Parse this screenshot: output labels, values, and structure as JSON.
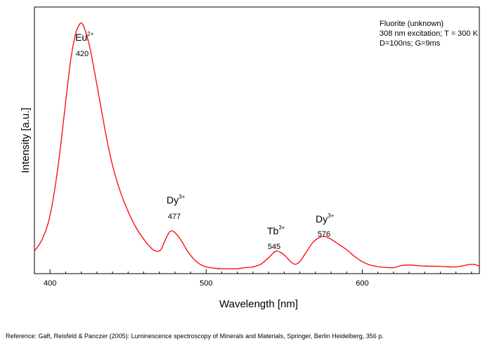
{
  "chart_data": {
    "type": "line",
    "title": "",
    "xlabel": "Wavelength [nm]",
    "ylabel": "Intensity [a.u.]",
    "xlim": [
      390,
      675
    ],
    "ylim": [
      0,
      100
    ],
    "x_ticks": [
      400,
      500,
      600
    ],
    "y_ticks": [],
    "grid": false,
    "series": [
      {
        "color": "#ff0000",
        "x": [
          390,
          395,
          400,
          405,
          410,
          413,
          416,
          418,
          420,
          422,
          425,
          428,
          432,
          436,
          440,
          445,
          450,
          455,
          460,
          465,
          468,
          471,
          474,
          477,
          480,
          484,
          488,
          492,
          496,
          500,
          505,
          510,
          515,
          520,
          525,
          530,
          535,
          540,
          545,
          550,
          554,
          557,
          560,
          564,
          568,
          572,
          576,
          580,
          585,
          590,
          595,
          600,
          605,
          610,
          615,
          620,
          625,
          630,
          640,
          650,
          660,
          670,
          675
        ],
        "y": [
          7.5,
          12,
          21,
          39,
          64,
          79,
          89,
          92.5,
          94,
          92,
          86,
          77,
          64,
          51,
          40,
          30,
          22.5,
          16.5,
          12,
          8.5,
          7.5,
          8,
          12,
          15,
          14.5,
          11.5,
          7.5,
          4.5,
          2.5,
          1.5,
          1,
          0.8,
          0.8,
          0.8,
          1.2,
          1.5,
          2.5,
          5,
          7.5,
          6,
          3.5,
          2.5,
          3.5,
          7,
          10.5,
          12.5,
          13,
          12,
          10,
          8,
          5.5,
          3.5,
          2.2,
          1.6,
          1.3,
          1.2,
          2,
          2.2,
          1.8,
          1.7,
          1.5,
          2.5,
          1.8
        ]
      }
    ],
    "annotations": [
      {
        "ion": "Eu",
        "charge": "2+",
        "value": "420"
      },
      {
        "ion": "Dy",
        "charge": "3+",
        "value": "477"
      },
      {
        "ion": "Tb",
        "charge": "3+",
        "value": "545"
      },
      {
        "ion": "Dy",
        "charge": "3+",
        "value": "576"
      }
    ]
  },
  "info_box": {
    "line1": "Fluorite (unknown)",
    "line2": "308 nm excitation; T = 300 K",
    "line3": "D=100ns; G=9ms"
  },
  "reference": "Reference: Gaft, Reisfeld & Panczer (2005): Luminescence spectroscopy of Minerals and Materials, Springer, Berlin Heidelberg, 356 p."
}
